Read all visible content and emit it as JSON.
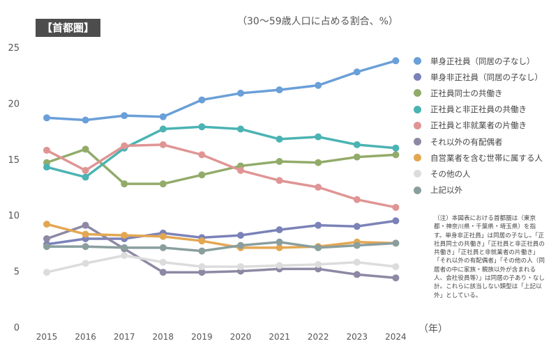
{
  "header": {
    "badge": "【首都圏】",
    "subtitle": "（30〜59歳人口に占める割合、%）",
    "x_unit": "（年）"
  },
  "note": "（注）本図表における首都圏は（東京都・神奈川県・千葉県・埼玉県）を指す。単身非正社員」は同居の子なし。「正社員同士の共働き」「正社員と非正社員の共働き」「正社員と非就業者の片働き」「それ以外の有配偶者」「その他の人（同居者の中に家族・親族以外が含まれる人、会社役員等）」は同居の子あり・なし計。これらに該当しない類型は「上記以外」としている。",
  "chart_data": {
    "type": "line",
    "categories": [
      "2015",
      "2016",
      "2017",
      "2018",
      "2019",
      "2020",
      "2021",
      "2022",
      "2023",
      "2024"
    ],
    "ylim": [
      0,
      25
    ],
    "yticks": [
      "0",
      "5",
      "10",
      "15",
      "20",
      "25"
    ],
    "grid": false,
    "legend": "right",
    "series": [
      {
        "name": "単身正社員（同居の子なし）",
        "color": "#6a9fd8",
        "values": [
          18.7,
          18.5,
          18.9,
          18.8,
          20.3,
          20.9,
          21.2,
          21.6,
          22.8,
          23.8
        ]
      },
      {
        "name": "単身非正社員（同居の子なし）",
        "color": "#7b82b8",
        "values": [
          7.4,
          7.9,
          7.9,
          8.4,
          8.0,
          8.2,
          8.7,
          9.1,
          9.0,
          9.5
        ]
      },
      {
        "name": "正社員同士の共働き",
        "color": "#92ab6a",
        "values": [
          14.7,
          15.9,
          12.8,
          12.8,
          13.6,
          14.4,
          14.8,
          14.7,
          15.2,
          15.4
        ]
      },
      {
        "name": "正社員と非正社員の共働き",
        "color": "#4bb3b3",
        "values": [
          14.3,
          13.4,
          16.0,
          17.7,
          17.9,
          17.7,
          16.8,
          17.0,
          16.3,
          16.0
        ]
      },
      {
        "name": "正社員と非就業者の片働き",
        "color": "#df9594",
        "values": [
          15.8,
          14.0,
          16.2,
          16.3,
          15.4,
          14.0,
          13.1,
          12.5,
          11.4,
          10.7
        ]
      },
      {
        "name": "それ以外の有配偶者",
        "color": "#8e88a4",
        "values": [
          7.9,
          9.1,
          7.0,
          4.9,
          4.9,
          5.0,
          5.2,
          5.2,
          4.7,
          4.4
        ]
      },
      {
        "name": "自営業者を含む世帯に属する人",
        "color": "#e3a752",
        "values": [
          9.2,
          8.3,
          8.2,
          8.1,
          7.7,
          7.1,
          7.1,
          7.2,
          7.6,
          7.5
        ]
      },
      {
        "name": "その他の人",
        "color": "#dcdcdc",
        "values": [
          4.9,
          5.7,
          6.4,
          5.8,
          5.4,
          5.4,
          5.5,
          5.6,
          5.8,
          5.4
        ]
      },
      {
        "name": "上記以外",
        "color": "#8a9e9e",
        "values": [
          7.2,
          7.2,
          7.1,
          7.1,
          6.8,
          7.3,
          7.6,
          7.1,
          7.3,
          7.5
        ]
      }
    ]
  }
}
